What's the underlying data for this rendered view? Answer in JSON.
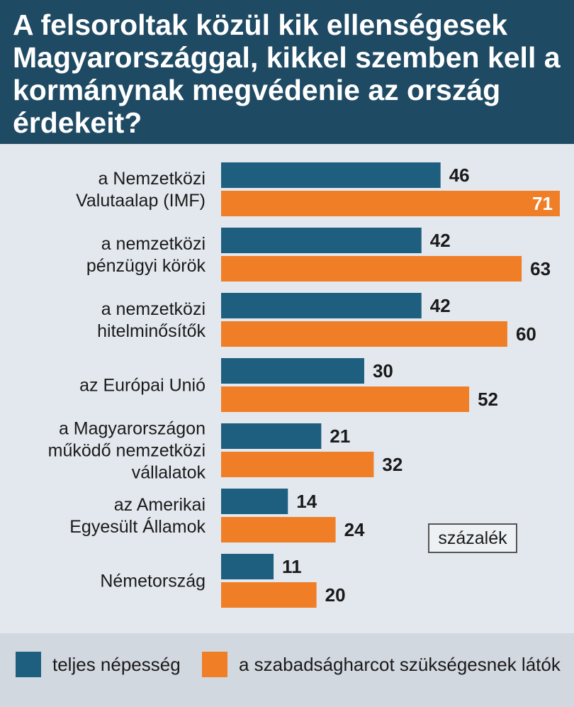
{
  "chart_data": {
    "type": "bar",
    "orientation": "horizontal",
    "title": "A felsoroltak közül kik ellenségesek Magyarországgal, kikkel szemben kell a kormánynak megvédenie az ország érdekeit?",
    "unit": "százalék",
    "categories": [
      [
        "a Nemzetközi",
        "Valutaalap (IMF)"
      ],
      [
        "a nemzetközi",
        "pénzügyi körök"
      ],
      [
        "a nemzetközi",
        "hitelminősítők"
      ],
      [
        "az Európai Unió"
      ],
      [
        "a Magyarországon",
        "működő nemzetközi",
        "vállalatok"
      ],
      [
        "az Amerikai",
        "Egyesült Államok"
      ],
      [
        "Németország"
      ]
    ],
    "series": [
      {
        "name": "teljes népesség",
        "color": "#1e5e7e",
        "values": [
          46,
          42,
          42,
          30,
          21,
          14,
          11
        ]
      },
      {
        "name": "a szabadságharcot szükségesnek látók",
        "color": "#f07e26",
        "values": [
          71,
          63,
          60,
          52,
          32,
          24,
          20
        ]
      }
    ],
    "xlim": [
      0,
      71
    ],
    "grid": false,
    "legend_position": "bottom"
  }
}
